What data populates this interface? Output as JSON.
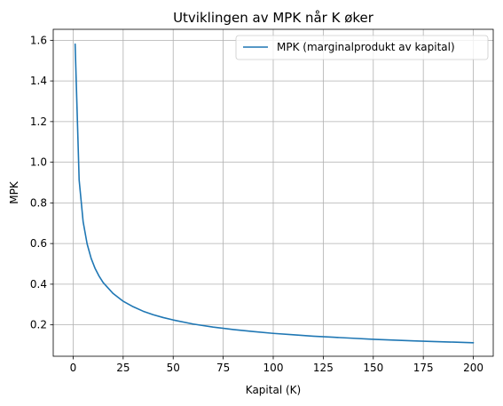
{
  "chart_data": {
    "type": "line",
    "title": "Utviklingen av MPK når K øker",
    "xlabel": "Kapital (K)",
    "ylabel": "MPK",
    "xlim": [
      -9.95,
      209.95
    ],
    "ylim": [
      0.0455,
      1.654
    ],
    "xticks": [
      0,
      25,
      50,
      75,
      100,
      125,
      150,
      175,
      200
    ],
    "xtick_labels": [
      "0",
      "25",
      "50",
      "75",
      "100",
      "125",
      "150",
      "175",
      "200"
    ],
    "yticks": [
      0.2,
      0.4,
      0.6,
      0.8,
      1.0,
      1.2,
      1.4,
      1.6
    ],
    "ytick_labels": [
      "0.2",
      "0.4",
      "0.6",
      "0.8",
      "1.0",
      "1.2",
      "1.4",
      "1.6"
    ],
    "grid": true,
    "legend_position": "top-right",
    "series": [
      {
        "name": "MPK (marginalprodukt av kapital)",
        "color": "#1f77b4",
        "x": [
          1,
          3,
          5,
          7,
          9,
          11,
          13,
          15,
          20,
          25,
          30,
          35,
          40,
          45,
          50,
          60,
          70,
          80,
          90,
          100,
          110,
          120,
          130,
          140,
          150,
          160,
          170,
          180,
          190,
          200
        ],
        "y": [
          1.581,
          0.913,
          0.707,
          0.598,
          0.527,
          0.477,
          0.439,
          0.408,
          0.354,
          0.316,
          0.289,
          0.267,
          0.25,
          0.236,
          0.224,
          0.204,
          0.189,
          0.177,
          0.167,
          0.158,
          0.151,
          0.144,
          0.139,
          0.134,
          0.129,
          0.125,
          0.121,
          0.118,
          0.115,
          0.112
        ]
      }
    ]
  }
}
